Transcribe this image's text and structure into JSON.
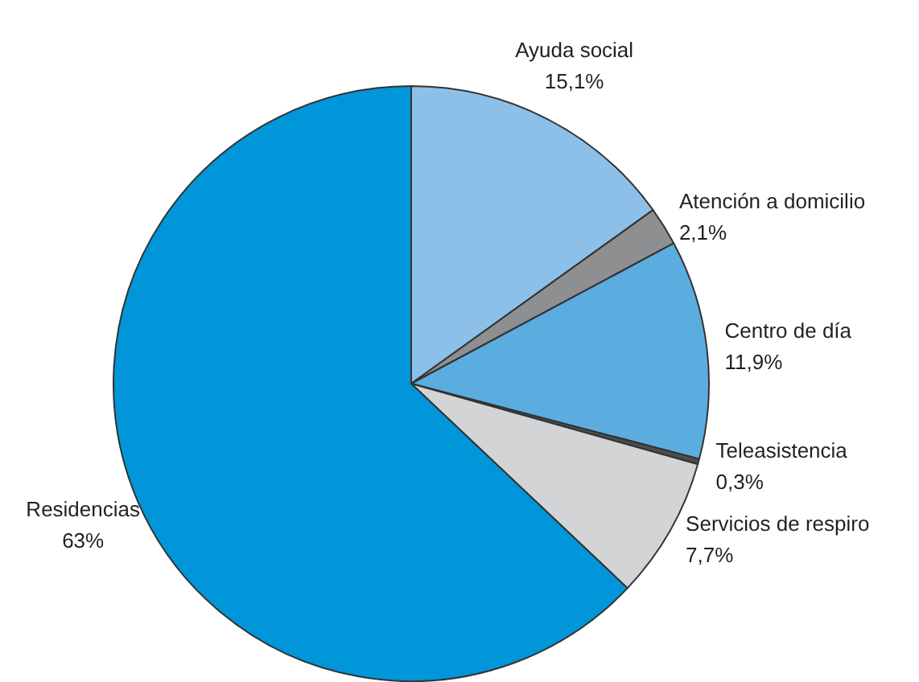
{
  "chart_data": {
    "type": "pie",
    "categories": [
      "Ayuda social",
      "Atención a domicilio",
      "Centro de día",
      "Teleasistencia",
      "Servicios de respiro",
      "Residencias"
    ],
    "values": [
      15.1,
      2.1,
      11.9,
      0.3,
      7.7,
      63
    ],
    "colors": [
      "#8dc0e8",
      "#8e8f91",
      "#5badE0",
      "#4d4d4f",
      "#d3d4d6",
      "#0096d9"
    ],
    "value_labels": [
      "15,1%",
      "2,1%",
      "11,9%",
      "0,3%",
      "7,7%",
      "63%"
    ]
  }
}
